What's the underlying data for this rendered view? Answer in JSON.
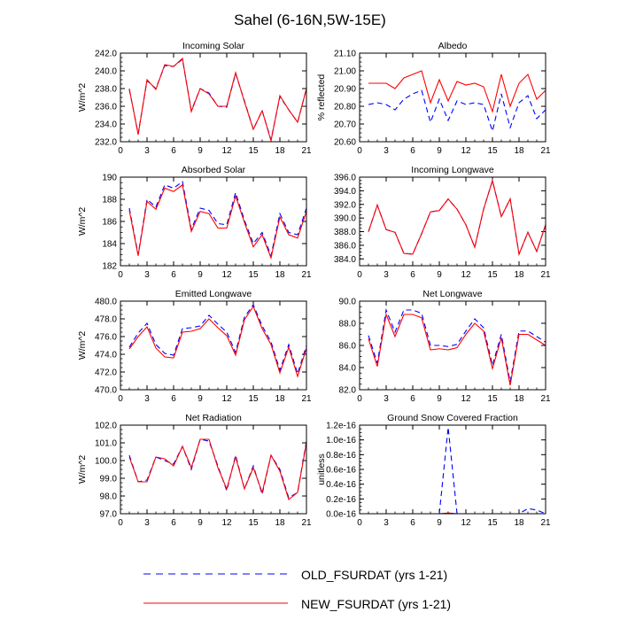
{
  "figure": {
    "title": "Sahel (6-16N,5W-15E)"
  },
  "legend": [
    {
      "name": "OLD_FSURDAT (yrs 1-21)",
      "color": "#0000ff",
      "dash": "dashed"
    },
    {
      "name": "NEW_FSURDAT (yrs 1-21)",
      "color": "#ff0000",
      "dash": "solid"
    }
  ],
  "chart_data": [
    {
      "type": "line",
      "title": "Incoming Solar",
      "ylabel": "W/m^2",
      "xlim": [
        0,
        21
      ],
      "ylim": [
        232.0,
        242.0
      ],
      "xticks": [
        "0",
        "3",
        "6",
        "9",
        "12",
        "15",
        "18",
        "21"
      ],
      "yticks": [
        "232.0",
        "234.0",
        "236.0",
        "238.0",
        "240.0",
        "242.0"
      ],
      "x": [
        1,
        2,
        3,
        4,
        5,
        6,
        7,
        8,
        9,
        10,
        11,
        12,
        13,
        14,
        15,
        16,
        17,
        18,
        19,
        20,
        21
      ],
      "series": [
        {
          "name": "OLD_FSURDAT (yrs 1-21)",
          "values": [
            237.9,
            232.9,
            238.9,
            238.0,
            240.6,
            240.5,
            241.3,
            235.5,
            238.0,
            237.5,
            236.0,
            235.9,
            239.7,
            236.6,
            233.4,
            235.5,
            232.2,
            237.1,
            235.6,
            234.2,
            238.0
          ]
        },
        {
          "name": "NEW_FSURDAT (yrs 1-21)",
          "values": [
            238.0,
            232.8,
            239.0,
            237.9,
            240.7,
            240.5,
            241.4,
            235.4,
            238.0,
            237.4,
            236.0,
            236.0,
            239.8,
            236.5,
            233.4,
            235.5,
            232.1,
            237.2,
            235.6,
            234.2,
            238.0
          ]
        }
      ]
    },
    {
      "type": "line",
      "title": "Albedo",
      "ylabel": "% reflected",
      "xlim": [
        0,
        21
      ],
      "ylim": [
        20.6,
        21.1
      ],
      "xticks": [
        "0",
        "3",
        "6",
        "9",
        "12",
        "15",
        "18",
        "21"
      ],
      "yticks": [
        "20.60",
        "20.70",
        "20.80",
        "20.90",
        "21.00",
        "21.10"
      ],
      "x": [
        1,
        2,
        3,
        4,
        5,
        6,
        7,
        8,
        9,
        10,
        11,
        12,
        13,
        14,
        15,
        16,
        17,
        18,
        19,
        20,
        21
      ],
      "series": [
        {
          "name": "OLD_FSURDAT (yrs 1-21)",
          "values": [
            20.81,
            20.82,
            20.81,
            20.78,
            20.84,
            20.87,
            20.89,
            20.71,
            20.84,
            20.72,
            20.83,
            20.81,
            20.82,
            20.81,
            20.66,
            20.87,
            20.68,
            20.82,
            20.86,
            20.73,
            20.78
          ]
        },
        {
          "name": "NEW_FSURDAT (yrs 1-21)",
          "values": [
            20.93,
            20.93,
            20.93,
            20.9,
            20.96,
            20.98,
            21.0,
            20.82,
            20.95,
            20.83,
            20.94,
            20.92,
            20.93,
            20.91,
            20.77,
            20.98,
            20.8,
            20.93,
            20.98,
            20.84,
            20.89
          ]
        }
      ]
    },
    {
      "type": "line",
      "title": "Absorbed Solar",
      "ylabel": "W/m^2",
      "xlim": [
        0,
        21
      ],
      "ylim": [
        182,
        190
      ],
      "xticks": [
        "0",
        "3",
        "6",
        "9",
        "12",
        "15",
        "18",
        "21"
      ],
      "yticks": [
        "182",
        "184",
        "186",
        "188",
        "190"
      ],
      "x": [
        1,
        2,
        3,
        4,
        5,
        6,
        7,
        8,
        9,
        10,
        11,
        12,
        13,
        14,
        15,
        16,
        17,
        18,
        19,
        20,
        21
      ],
      "series": [
        {
          "name": "OLD_FSURDAT (yrs 1-21)",
          "values": [
            187.2,
            183.0,
            188.0,
            187.3,
            189.3,
            189.0,
            189.6,
            185.3,
            187.2,
            187.0,
            185.8,
            185.7,
            188.6,
            186.1,
            184.0,
            185.0,
            182.9,
            186.7,
            185.0,
            184.8,
            187.2
          ]
        },
        {
          "name": "NEW_FSURDAT (yrs 1-21)",
          "values": [
            187.0,
            182.9,
            187.8,
            187.1,
            189.0,
            188.7,
            189.3,
            185.1,
            186.9,
            186.7,
            185.4,
            185.4,
            188.3,
            185.9,
            183.7,
            184.8,
            182.7,
            186.4,
            184.8,
            184.5,
            186.9
          ]
        }
      ]
    },
    {
      "type": "line",
      "title": "Incoming Longwave",
      "ylabel": "",
      "xlim": [
        0,
        21
      ],
      "ylim": [
        383.0,
        396.0
      ],
      "xticks": [
        "0",
        "3",
        "6",
        "9",
        "12",
        "15",
        "18",
        "21"
      ],
      "yticks": [
        "384.0",
        "386.0",
        "388.0",
        "390.0",
        "392.0",
        "394.0",
        "396.0"
      ],
      "x": [
        1,
        2,
        3,
        4,
        5,
        6,
        7,
        8,
        9,
        10,
        11,
        12,
        13,
        14,
        15,
        16,
        17,
        18,
        19,
        20,
        21
      ],
      "series": [
        {
          "name": "OLD_FSURDAT (yrs 1-21)",
          "values": [
            388.0,
            391.9,
            388.3,
            387.9,
            384.8,
            384.7,
            387.7,
            390.9,
            391.1,
            392.8,
            391.3,
            389.0,
            385.7,
            391.3,
            395.5,
            390.2,
            392.8,
            384.7,
            387.9,
            385.1,
            389.0
          ]
        },
        {
          "name": "NEW_FSURDAT (yrs 1-21)",
          "values": [
            388.0,
            391.9,
            388.3,
            387.9,
            384.8,
            384.7,
            387.7,
            390.9,
            391.1,
            392.8,
            391.3,
            389.0,
            385.7,
            391.3,
            395.5,
            390.2,
            392.8,
            384.7,
            387.9,
            385.1,
            389.0
          ]
        }
      ]
    },
    {
      "type": "line",
      "title": "Emitted Longwave",
      "ylabel": "W/m^2",
      "xlim": [
        0,
        21
      ],
      "ylim": [
        470.0,
        480.0
      ],
      "xticks": [
        "0",
        "3",
        "6",
        "9",
        "12",
        "15",
        "18",
        "21"
      ],
      "yticks": [
        "470.0",
        "472.0",
        "474.0",
        "476.0",
        "478.0",
        "480.0"
      ],
      "x": [
        1,
        2,
        3,
        4,
        5,
        6,
        7,
        8,
        9,
        10,
        11,
        12,
        13,
        14,
        15,
        16,
        17,
        18,
        19,
        20,
        21
      ],
      "series": [
        {
          "name": "OLD_FSURDAT (yrs 1-21)",
          "values": [
            474.8,
            476.4,
            477.5,
            475.1,
            474.1,
            473.9,
            476.9,
            477.0,
            477.2,
            478.4,
            477.4,
            476.5,
            474.2,
            478.2,
            479.6,
            477.2,
            475.4,
            472.2,
            475.1,
            471.8,
            475.0
          ]
        },
        {
          "name": "NEW_FSURDAT (yrs 1-21)",
          "values": [
            474.6,
            476.0,
            477.1,
            474.7,
            473.7,
            473.6,
            476.5,
            476.6,
            476.9,
            478.0,
            477.0,
            476.1,
            473.9,
            477.9,
            479.4,
            476.9,
            475.1,
            471.9,
            474.8,
            471.5,
            474.7
          ]
        }
      ]
    },
    {
      "type": "line",
      "title": "Net Longwave",
      "ylabel": "",
      "xlim": [
        0,
        21
      ],
      "ylim": [
        82.0,
        90.0
      ],
      "xticks": [
        "0",
        "3",
        "6",
        "9",
        "12",
        "15",
        "18",
        "21"
      ],
      "yticks": [
        "82.0",
        "84.0",
        "86.0",
        "88.0",
        "90.0"
      ],
      "x": [
        1,
        2,
        3,
        4,
        5,
        6,
        7,
        8,
        9,
        10,
        11,
        12,
        13,
        14,
        15,
        16,
        17,
        18,
        19,
        20,
        21
      ],
      "series": [
        {
          "name": "OLD_FSURDAT (yrs 1-21)",
          "values": [
            86.9,
            84.4,
            89.2,
            87.2,
            89.2,
            89.2,
            88.9,
            86.0,
            86.0,
            85.9,
            86.1,
            87.3,
            88.4,
            87.6,
            84.2,
            87.0,
            82.7,
            87.3,
            87.3,
            86.8,
            86.3
          ]
        },
        {
          "name": "NEW_FSURDAT (yrs 1-21)",
          "values": [
            86.6,
            84.1,
            88.8,
            86.8,
            88.8,
            88.8,
            88.5,
            85.6,
            85.7,
            85.6,
            85.8,
            87.0,
            88.0,
            87.3,
            83.9,
            86.7,
            82.4,
            87.0,
            87.0,
            86.5,
            86.0
          ]
        }
      ]
    },
    {
      "type": "line",
      "title": "Net Radiation",
      "ylabel": "W/m^2",
      "xlim": [
        0,
        21
      ],
      "ylim": [
        97.0,
        102.0
      ],
      "xticks": [
        "0",
        "3",
        "6",
        "9",
        "12",
        "15",
        "18",
        "21"
      ],
      "yticks": [
        "97.0",
        "98.0",
        "99.0",
        "100.0",
        "101.0",
        "102.0"
      ],
      "x": [
        1,
        2,
        3,
        4,
        5,
        6,
        7,
        8,
        9,
        10,
        11,
        12,
        13,
        14,
        15,
        16,
        17,
        18,
        19,
        20,
        21
      ],
      "series": [
        {
          "name": "OLD_FSURDAT (yrs 1-21)",
          "values": [
            100.3,
            98.8,
            98.9,
            100.2,
            100.0,
            99.8,
            100.8,
            99.5,
            101.2,
            101.1,
            99.7,
            98.3,
            100.3,
            98.4,
            99.7,
            98.1,
            100.3,
            99.5,
            97.9,
            98.2,
            101.1
          ]
        },
        {
          "name": "NEW_FSURDAT (yrs 1-21)",
          "values": [
            100.2,
            98.8,
            98.8,
            100.2,
            100.1,
            99.7,
            100.8,
            99.6,
            101.2,
            101.2,
            99.6,
            98.4,
            100.2,
            98.4,
            99.6,
            98.2,
            100.3,
            99.4,
            97.8,
            98.2,
            101.0
          ]
        }
      ]
    },
    {
      "type": "line",
      "title": "Ground Snow Covered Fraction",
      "ylabel": "unitless",
      "xlim": [
        0,
        21
      ],
      "ylim": [
        0.0,
        1.2e-16
      ],
      "xticks": [
        "0",
        "3",
        "6",
        "9",
        "12",
        "15",
        "18",
        "21"
      ],
      "yticks": [
        "0.0e-16",
        "0.2e-16",
        "0.4e-16",
        "0.6e-16",
        "0.8e-16",
        "1.0e-16",
        "1.2e-16"
      ],
      "x": [
        1,
        2,
        3,
        4,
        5,
        6,
        7,
        8,
        9,
        10,
        11,
        12,
        13,
        14,
        15,
        16,
        17,
        18,
        19,
        20,
        21
      ],
      "series": [
        {
          "name": "OLD_FSURDAT (yrs 1-21)",
          "values": [
            0,
            0,
            0,
            0,
            0,
            0,
            0,
            0,
            0,
            1.17e-16,
            0,
            0,
            0,
            0,
            0,
            0,
            0,
            0,
            7e-18,
            5e-18,
            0
          ]
        },
        {
          "name": "NEW_FSURDAT (yrs 1-21)",
          "values": [
            0,
            0,
            0,
            0,
            0,
            0,
            0,
            0,
            0,
            1e-18,
            0,
            0,
            0,
            0,
            0,
            0,
            0,
            0,
            0,
            0,
            0
          ]
        }
      ]
    }
  ]
}
